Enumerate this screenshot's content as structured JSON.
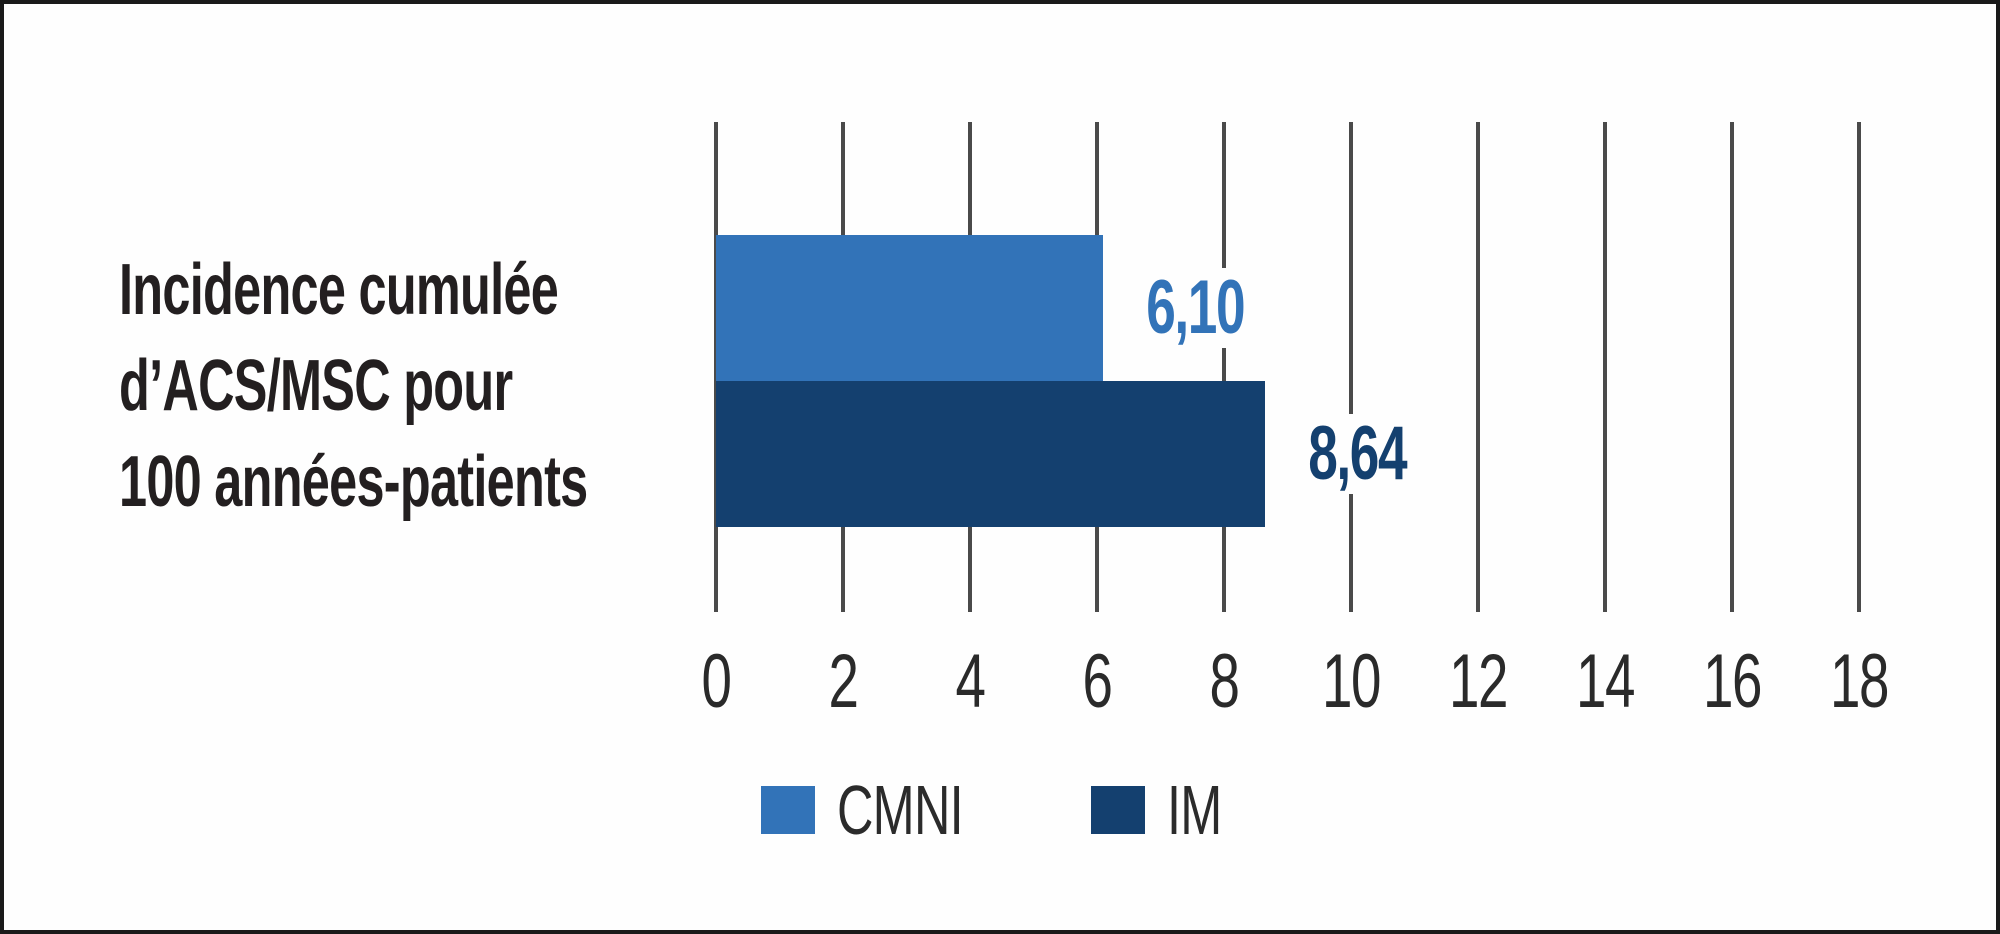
{
  "figure": {
    "category_label_lines": [
      "Incidence cumulée",
      "d’ACS/MSC pour",
      "100 années-patients"
    ]
  },
  "colors": {
    "cmni_blue": "#3273B8",
    "im_navy": "#14406F",
    "gridline_gray": "#4A4A4A",
    "text_black": "#231F20",
    "frame_black": "#1A1A1A",
    "background_white": "#FFFFFF"
  },
  "chart_data": {
    "type": "bar",
    "orientation": "horizontal",
    "title": "",
    "xlabel": "",
    "ylabel": "Incidence cumulée d’ACS/MSC pour 100 années-patients",
    "categories": [
      "Incidence cumulée d’ACS/MSC pour 100 années-patients"
    ],
    "series": [
      {
        "name": "CMNI",
        "values": [
          6.1
        ],
        "value_label": "6,10",
        "color": "#3273B8"
      },
      {
        "name": "IM",
        "values": [
          8.64
        ],
        "value_label": "8,64",
        "color": "#14406F"
      }
    ],
    "xlim": [
      0,
      18
    ],
    "xticks": [
      0,
      2,
      4,
      6,
      8,
      10,
      12,
      14,
      16,
      18
    ],
    "grid": "vertical-gridlines-only",
    "legend_position": "bottom"
  },
  "legend": {
    "items": [
      {
        "label": "CMNI",
        "color": "#3273B8"
      },
      {
        "label": "IM",
        "color": "#14406F"
      }
    ]
  }
}
